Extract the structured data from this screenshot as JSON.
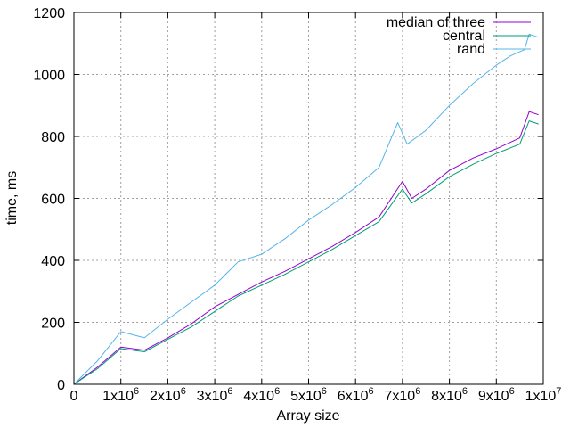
{
  "chart_data": {
    "type": "line",
    "title": "",
    "xlabel": "Array size",
    "ylabel": "time, ms",
    "xlim": [
      0,
      10000000
    ],
    "ylim": [
      0,
      1200
    ],
    "grid": true,
    "legend_position": "top-right",
    "x_ticks": [
      {
        "value": 0,
        "mantissa": "0",
        "exponent": ""
      },
      {
        "value": 1000000,
        "mantissa": "1x10",
        "exponent": "6"
      },
      {
        "value": 2000000,
        "mantissa": "2x10",
        "exponent": "6"
      },
      {
        "value": 3000000,
        "mantissa": "3x10",
        "exponent": "6"
      },
      {
        "value": 4000000,
        "mantissa": "4x10",
        "exponent": "6"
      },
      {
        "value": 5000000,
        "mantissa": "5x10",
        "exponent": "6"
      },
      {
        "value": 6000000,
        "mantissa": "6x10",
        "exponent": "6"
      },
      {
        "value": 7000000,
        "mantissa": "7x10",
        "exponent": "6"
      },
      {
        "value": 8000000,
        "mantissa": "8x10",
        "exponent": "6"
      },
      {
        "value": 9000000,
        "mantissa": "9x10",
        "exponent": "6"
      },
      {
        "value": 10000000,
        "mantissa": "1x10",
        "exponent": "7"
      }
    ],
    "y_ticks": [
      {
        "value": 0,
        "label": "0"
      },
      {
        "value": 200,
        "label": "200"
      },
      {
        "value": 400,
        "label": "400"
      },
      {
        "value": 600,
        "label": "600"
      },
      {
        "value": 800,
        "label": "800"
      },
      {
        "value": 1000,
        "label": "1000"
      },
      {
        "value": 1200,
        "label": "1200"
      }
    ],
    "series": [
      {
        "name": "median of three",
        "color": "#9400d3",
        "points": [
          [
            0,
            0
          ],
          [
            500000,
            55
          ],
          [
            1000000,
            120
          ],
          [
            1500000,
            110
          ],
          [
            2000000,
            150
          ],
          [
            2500000,
            195
          ],
          [
            3000000,
            250
          ],
          [
            3500000,
            290
          ],
          [
            4000000,
            330
          ],
          [
            4500000,
            365
          ],
          [
            5000000,
            405
          ],
          [
            5500000,
            445
          ],
          [
            6000000,
            490
          ],
          [
            6500000,
            540
          ],
          [
            7000000,
            655
          ],
          [
            7200000,
            600
          ],
          [
            7500000,
            630
          ],
          [
            8000000,
            690
          ],
          [
            8500000,
            730
          ],
          [
            9000000,
            760
          ],
          [
            9500000,
            795
          ],
          [
            9700000,
            880
          ],
          [
            9900000,
            870
          ]
        ]
      },
      {
        "name": "central",
        "color": "#009e73",
        "points": [
          [
            0,
            0
          ],
          [
            500000,
            50
          ],
          [
            1000000,
            115
          ],
          [
            1500000,
            105
          ],
          [
            2000000,
            145
          ],
          [
            2500000,
            185
          ],
          [
            3000000,
            235
          ],
          [
            3500000,
            285
          ],
          [
            4000000,
            320
          ],
          [
            4500000,
            355
          ],
          [
            5000000,
            395
          ],
          [
            5500000,
            435
          ],
          [
            6000000,
            480
          ],
          [
            6500000,
            525
          ],
          [
            7000000,
            630
          ],
          [
            7200000,
            585
          ],
          [
            7500000,
            615
          ],
          [
            8000000,
            670
          ],
          [
            8500000,
            710
          ],
          [
            9000000,
            745
          ],
          [
            9500000,
            775
          ],
          [
            9700000,
            850
          ],
          [
            9900000,
            840
          ]
        ]
      },
      {
        "name": "rand",
        "color": "#56b4e9",
        "points": [
          [
            0,
            0
          ],
          [
            500000,
            75
          ],
          [
            1000000,
            170
          ],
          [
            1500000,
            150
          ],
          [
            2000000,
            210
          ],
          [
            2500000,
            265
          ],
          [
            3000000,
            320
          ],
          [
            3500000,
            395
          ],
          [
            4000000,
            420
          ],
          [
            4500000,
            470
          ],
          [
            5000000,
            530
          ],
          [
            5500000,
            580
          ],
          [
            6000000,
            635
          ],
          [
            6500000,
            700
          ],
          [
            6900000,
            845
          ],
          [
            7100000,
            775
          ],
          [
            7500000,
            820
          ],
          [
            8000000,
            900
          ],
          [
            8500000,
            970
          ],
          [
            9000000,
            1030
          ],
          [
            9300000,
            1060
          ],
          [
            9600000,
            1080
          ],
          [
            9700000,
            1130
          ],
          [
            9900000,
            1120
          ]
        ]
      }
    ]
  }
}
